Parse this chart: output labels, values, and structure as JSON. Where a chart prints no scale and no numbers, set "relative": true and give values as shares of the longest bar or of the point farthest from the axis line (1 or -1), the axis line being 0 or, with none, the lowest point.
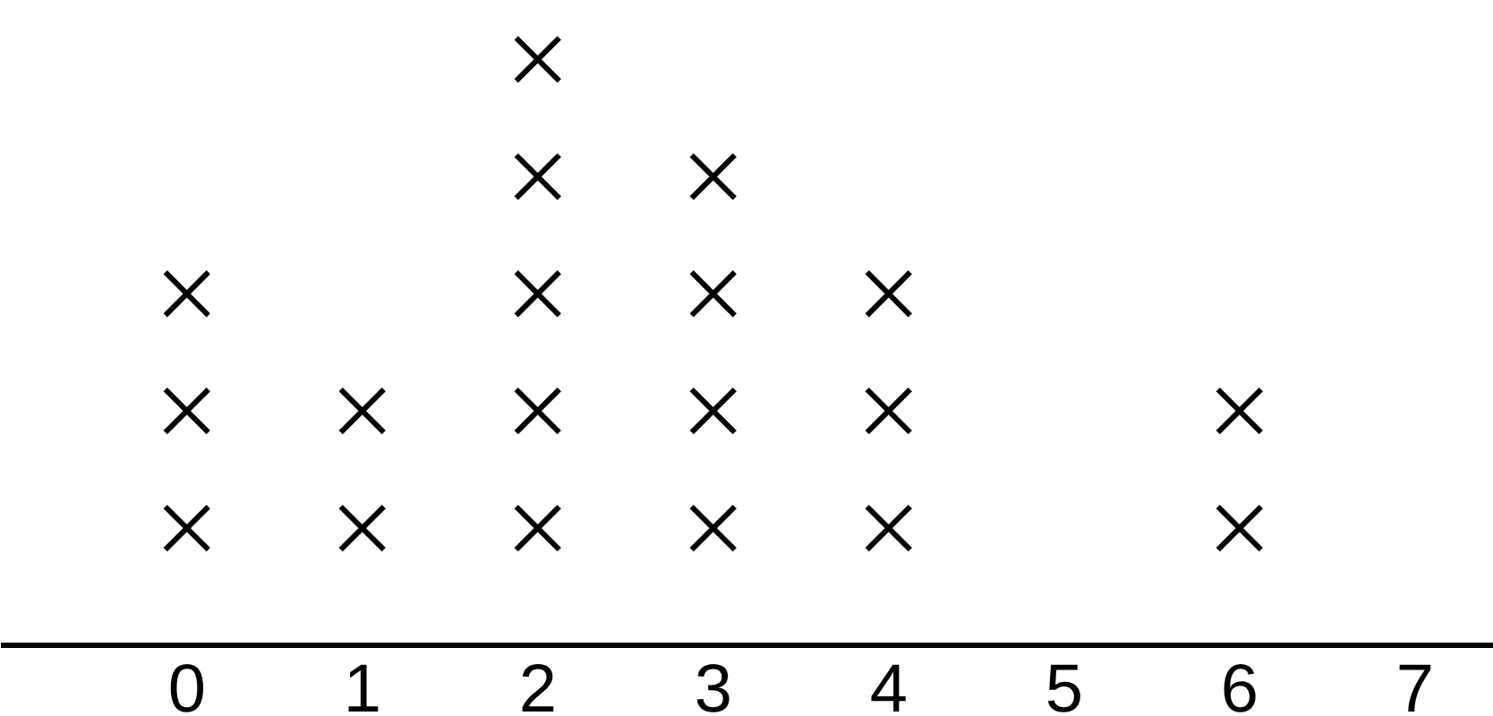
{
  "chart_data": {
    "type": "scatter",
    "relative": true,
    "marker": "cross",
    "tick_labels": "x",
    "xlim": [
      -1.06,
      7.45
    ],
    "xticks": [
      0,
      1,
      2,
      3,
      4,
      5,
      6,
      7
    ],
    "series": [
      {
        "color": "#000000",
        "x": [
          0,
          0,
          0,
          1,
          1,
          2,
          2,
          2,
          2,
          2,
          3,
          3,
          3,
          3,
          4,
          4,
          4,
          6,
          6
        ],
        "values": [
          0.2,
          0.4,
          0.6,
          0.2,
          0.4,
          0.2,
          0.4,
          0.6,
          0.8,
          1,
          0.2,
          0.4,
          0.6,
          0.8,
          0.2,
          0.4,
          0.6,
          0.2,
          0.4
        ]
      }
    ]
  }
}
